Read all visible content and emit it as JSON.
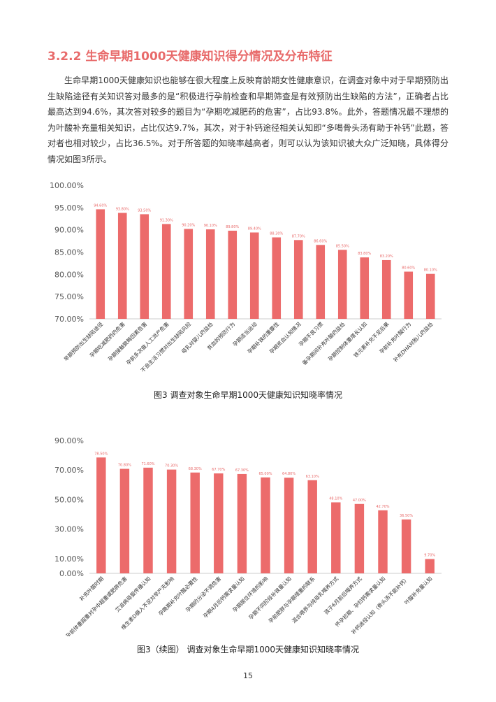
{
  "section": {
    "heading": "3.2.2 生命早期1000天健康知识得分情况及分布特征",
    "paragraph": "生命早期1000天健康知识也能够在很大程度上反映育龄期女性健康意识，在调查对象中对于早期预防出生缺陷途径有关知识答对最多的是“积极进行孕前检查和早期筛查是有效预防出生缺陷的方法”，正确者占比最高达到94.6%，其次答对较多的题目为“孕期吃减肥药的危害”，占比93.8%。此外，答题情况最不理想的为叶酸补充量相关知识，占比仅达9.7%，其次，对于补钙途径相关认知即“多喝骨头汤有助于补钙”此题，答对者也相对较少，占比36.5%。对于所答题的知晓率越高者，则可以认为该知识被大众广泛知晓，具体得分情况如图3所示。"
  },
  "colors": {
    "bar": "#ec6b6b",
    "heading": "#e86a6a"
  },
  "chart_data": [
    {
      "type": "bar",
      "title": "图3 调查对象生命早期1000天健康知识知晓率情况",
      "ylim": [
        70,
        100
      ],
      "yticks": [
        70,
        75,
        80,
        85,
        90,
        95,
        100
      ],
      "ytick_labels": [
        "70.00%",
        "75.00%",
        "80.00%",
        "85.00%",
        "90.00%",
        "95.00%",
        "100.00%"
      ],
      "categories": [
        "早期预防出生缺陷途径",
        "孕期吃减肥药的危害",
        "孕期接触致畸因素危害",
        "孕前多次做人工流产危害",
        "不良生活习惯对出生缺陷风险",
        "母乳对婴儿的益处",
        "贫血的预防行为",
        "孕期适当运动",
        "孕期补铁的重要性",
        "孕期贫血认知情况",
        "孕期不良习惯",
        "备孕期间补充叶酸的益处",
        "孕期控制体重增长认知",
        "铁元素补充不足后果",
        "孕前补充叶酸行为",
        "补充DHA对胎儿的益处"
      ],
      "values": [
        94.6,
        93.8,
        93.5,
        91.3,
        90.2,
        90.1,
        89.8,
        89.4,
        88.3,
        87.7,
        86.6,
        85.5,
        83.8,
        83.2,
        80.6,
        80.1
      ],
      "value_labels": [
        "94.60%",
        "93.80%",
        "93.50%",
        "91.30%",
        "90.20%",
        "90.10%",
        "89.80%",
        "89.40%",
        "88.30%",
        "87.70%",
        "86.60%",
        "85.50%",
        "83.80%",
        "83.20%",
        "80.60%",
        "80.10%"
      ],
      "grid": false
    },
    {
      "type": "bar",
      "title": "图3（续图） 调查对象生命早期1000天健康知识知晓率情况",
      "ylim": [
        0,
        90
      ],
      "yticks": [
        0,
        10,
        30,
        50,
        70,
        90
      ],
      "ytick_labels": [
        "0.00%",
        "10.00%",
        "30.00%",
        "50.00%",
        "70.00%",
        "90.00%"
      ],
      "categories": [
        "补充叶酸时期",
        "孕前体重超重对孕中超重或肥胖危害",
        "艾滋病母婴传播认知",
        "维生素D摄入不足对早产无影响",
        "孕晚期补充叶酸必要性",
        "孕期的分泌不调危害",
        "孕期4月后钙需求量认知",
        "孕期居住环境的影响",
        "孕期不同阶段补铁量认知",
        "孕前肥胖与孕期增重的联系",
        "混合喂养与纯母乳喂养方式",
        "孩子6月前后喂养方式",
        "怀孕初期、孕妇钙需求量认知",
        "补钙途径认知（骨头汤不能补钙）",
        "叶酸补充量认知"
      ],
      "values": [
        78.5,
        70.8,
        71.6,
        70.3,
        68.3,
        67.7,
        67.3,
        65.0,
        64.8,
        63.1,
        48.1,
        47.0,
        42.7,
        36.5,
        9.7
      ],
      "value_labels": [
        "78.50%",
        "70.80%",
        "71.60%",
        "70.30%",
        "68.30%",
        "67.70%",
        "67.30%",
        "65.00%",
        "64.80%",
        "63.10%",
        "48.10%",
        "47.00%",
        "42.70%",
        "36.50%",
        "9.70%"
      ],
      "grid": false
    }
  ],
  "page": {
    "number": "15"
  }
}
